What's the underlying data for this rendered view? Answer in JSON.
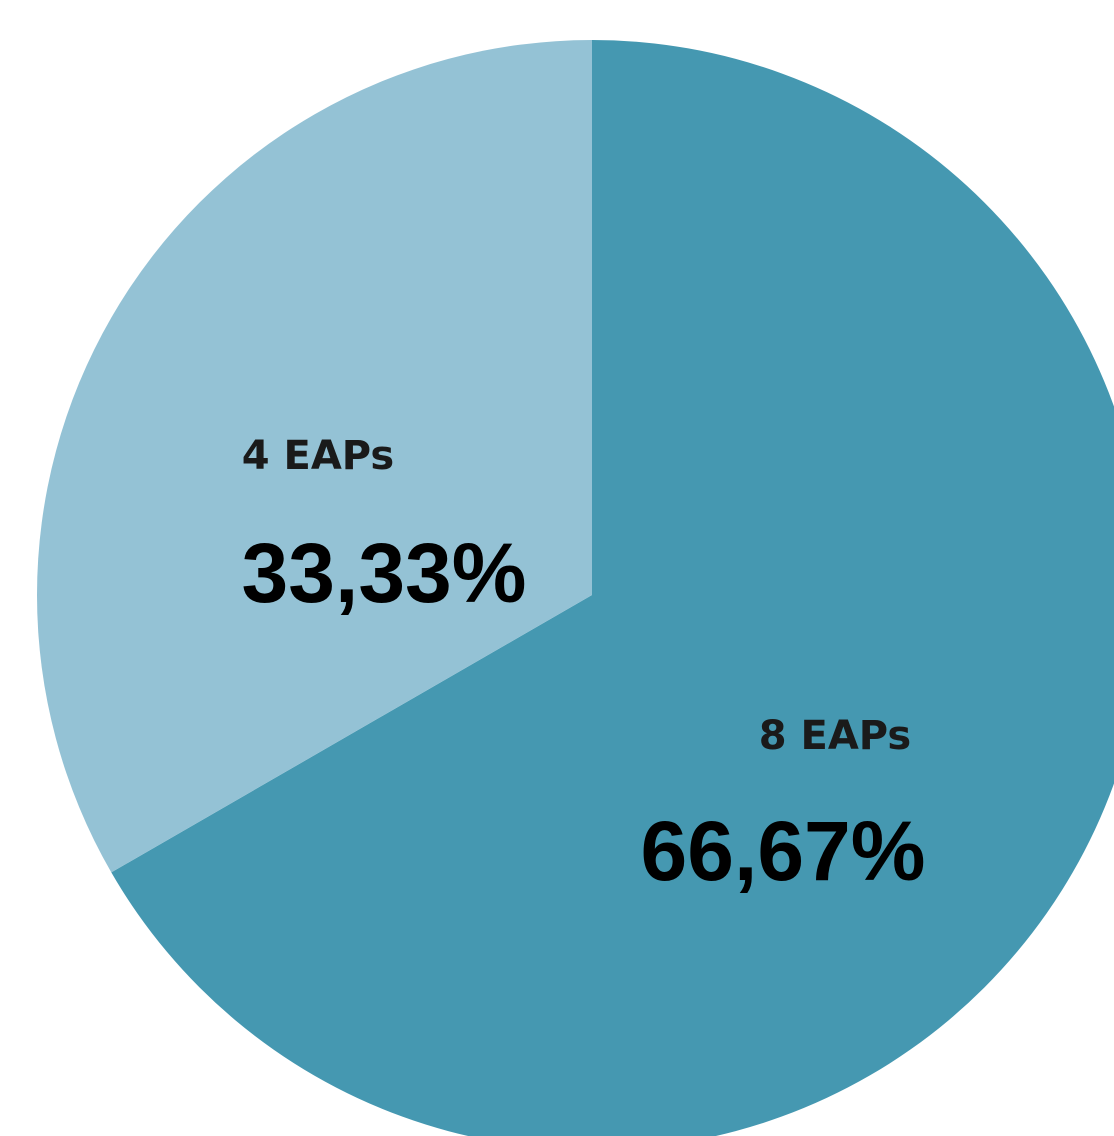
{
  "chart_data": {
    "type": "pie",
    "title": "",
    "slices": [
      {
        "label": "8 EAPs",
        "value": 66.67,
        "value_label": "66,67%",
        "color": "#4598b1"
      },
      {
        "label": "4 EAPs",
        "value": 33.33,
        "value_label": "33,33%",
        "color": "#94c2d5"
      }
    ],
    "start_angle_deg": 0,
    "direction": "clockwise",
    "legend": "none",
    "data_labels": "inside"
  }
}
